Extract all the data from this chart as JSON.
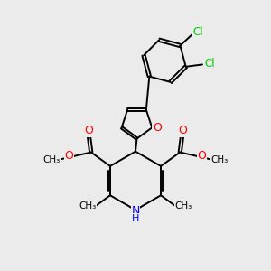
{
  "background_color": "#ebebeb",
  "bond_color": "#000000",
  "N_color": "#0000ff",
  "O_color": "#ff0000",
  "Cl_color": "#00cc00",
  "lw": 1.4,
  "figsize": [
    3.0,
    3.0
  ],
  "dpi": 100,
  "xlim": [
    0,
    10
  ],
  "ylim": [
    0,
    10
  ]
}
